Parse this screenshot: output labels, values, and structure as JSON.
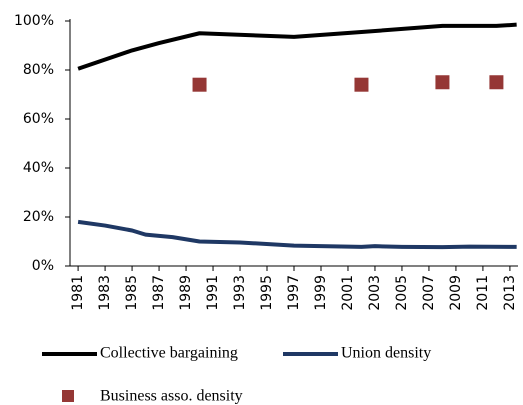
{
  "chart_data": {
    "type": "line",
    "xlim": [
      1980.4,
      2013.6
    ],
    "xticks": [
      1981,
      1983,
      1985,
      1987,
      1989,
      1991,
      1993,
      1995,
      1997,
      1999,
      2001,
      2003,
      2005,
      2007,
      2009,
      2011,
      2013
    ],
    "ylim": [
      0,
      100
    ],
    "yticks": [
      {
        "value": 0,
        "label": "0%"
      },
      {
        "value": 20,
        "label": "20%"
      },
      {
        "value": 40,
        "label": "40%"
      },
      {
        "value": 60,
        "label": "60%"
      },
      {
        "value": 80,
        "label": "80%"
      },
      {
        "value": 100,
        "label": "100%"
      }
    ],
    "legend": "bottom",
    "series": [
      {
        "name": "Collective bargaining",
        "type": "line",
        "color": "#000000",
        "x": [
          1981,
          1985,
          1987,
          1990,
          1997,
          2002,
          2008,
          2012,
          2013.5
        ],
        "values": [
          80.5,
          88,
          91,
          95,
          93.5,
          95.5,
          98,
          98,
          98.5
        ]
      },
      {
        "name": "Union density",
        "type": "line",
        "color": "#1f3864",
        "x": [
          1981,
          1983,
          1985,
          1986,
          1988,
          1990,
          1993,
          1997,
          2002,
          2003,
          2005,
          2008,
          2010,
          2013.5
        ],
        "values": [
          18,
          16.5,
          14.5,
          12.8,
          11.8,
          10,
          9.6,
          8.3,
          7.8,
          8.1,
          7.8,
          7.7,
          7.9,
          7.8
        ]
      },
      {
        "name": "Business asso. density",
        "type": "scatter",
        "color": "#953735",
        "x": [
          1990,
          2002,
          2008,
          2012
        ],
        "values": [
          74,
          74,
          75,
          75
        ]
      }
    ]
  }
}
